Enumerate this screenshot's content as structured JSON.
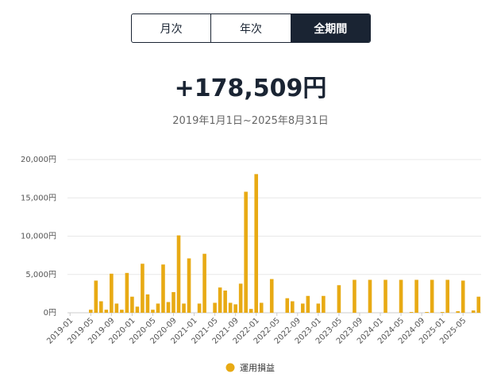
{
  "tabs": [
    "月次",
    "年次",
    "全期間"
  ],
  "active_tab": 2,
  "chart_data": {
    "type": "bar",
    "title": "+178,509円",
    "subtitle": "2019年1月1日~2025年8月31日",
    "categories": [
      "2019-01",
      null,
      null,
      null,
      "2019-05",
      null,
      null,
      null,
      "2019-09",
      null,
      null,
      null,
      "2020-01",
      null,
      null,
      null,
      "2020-05",
      null,
      null,
      null,
      "2020-09",
      null,
      null,
      null,
      "2021-01",
      null,
      null,
      null,
      "2021-05",
      null,
      null,
      null,
      "2021-09",
      null,
      null,
      null,
      "2022-01",
      null,
      null,
      null,
      "2022-05",
      null,
      null,
      null,
      "2022-09",
      null,
      null,
      null,
      "2023-01",
      null,
      null,
      null,
      "2023-05",
      null,
      null,
      null,
      "2023-09",
      null,
      null,
      null,
      "2024-01",
      null,
      null,
      null,
      "2024-05",
      null,
      null,
      null,
      "2024-09",
      null,
      null,
      null,
      "2025-01",
      null,
      null,
      null,
      "2025-05",
      null,
      null,
      null
    ],
    "series": [
      {
        "name": "運用損益",
        "color": "#e8aa14",
        "values": [
          0,
          0,
          0,
          0,
          400,
          4200,
          1500,
          400,
          5100,
          1200,
          400,
          5200,
          2100,
          800,
          6400,
          2400,
          400,
          1200,
          6300,
          1400,
          2700,
          10100,
          1200,
          7100,
          0,
          1200,
          7700,
          0,
          1300,
          3300,
          2900,
          1300,
          1100,
          3800,
          15800,
          500,
          18100,
          1300,
          0,
          4400,
          0,
          0,
          1900,
          1500,
          0,
          1200,
          2200,
          0,
          1200,
          2200,
          0,
          0,
          3600,
          0,
          0,
          4300,
          0,
          0,
          4300,
          0,
          0,
          4300,
          0,
          0,
          4300,
          0,
          100,
          4300,
          0,
          100,
          4300,
          0,
          100,
          4300,
          0,
          200,
          4200,
          0,
          300,
          2100
        ]
      }
    ],
    "ylim": [
      0,
      20000
    ],
    "yticks": [
      {
        "value": 0,
        "label": "0円"
      },
      {
        "value": 5000,
        "label": "5,000円"
      },
      {
        "value": 10000,
        "label": "10,000円"
      },
      {
        "value": 15000,
        "label": "15,000円"
      },
      {
        "value": 20000,
        "label": "20,000円"
      }
    ],
    "grid": true
  }
}
